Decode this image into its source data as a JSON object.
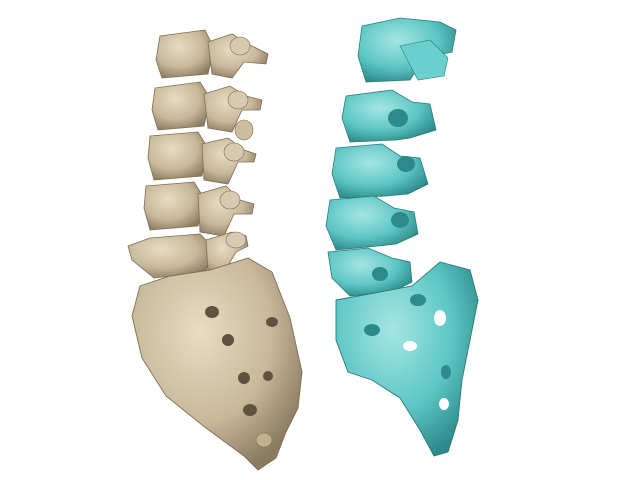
{
  "scene": {
    "background_color": "#ffffff",
    "models": [
      {
        "name": "bone-spine-model",
        "material_color": "#c9b89a",
        "shadow_color": "#8a7a60",
        "highlight_color": "#e8dcc4",
        "vertebra_count": 5
      },
      {
        "name": "cyan-segmented-spine-model",
        "material_color": "#5cc6c4",
        "shadow_color": "#2d8a8a",
        "highlight_color": "#a6e6e4",
        "vertebra_count": 5
      }
    ]
  }
}
